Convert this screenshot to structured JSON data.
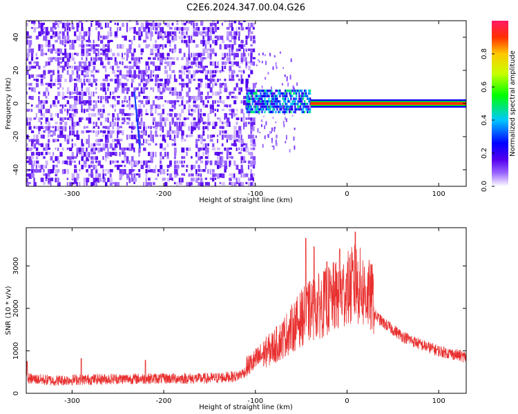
{
  "title": "C2E6.2024.347.00.04.G26",
  "chart_data": [
    {
      "type": "heatmap",
      "xlabel": "Height of straight line (km)",
      "ylabel": "Frequency (Hz)",
      "xlim": [
        -350,
        130
      ],
      "ylim": [
        -50,
        50
      ],
      "x_ticks": [
        -300,
        -200,
        -100,
        0,
        100
      ],
      "y_ticks": [
        -40,
        -20,
        0,
        20,
        40
      ],
      "colorbar": {
        "label": "Normalized spectral amplitude",
        "range": [
          0,
          1
        ],
        "ticks": [
          "0.0",
          "0.2",
          "0.4",
          "0.6",
          "0.8"
        ]
      },
      "regions": [
        {
          "x_range": [
            -350,
            -100
          ],
          "freq_range": [
            -50,
            50
          ],
          "amplitude": 0.05
        },
        {
          "x_range": [
            -110,
            -40
          ],
          "freq_range": [
            -6,
            8
          ],
          "amplitude": 0.4
        },
        {
          "x_range": [
            -40,
            130
          ],
          "freq_range": [
            -1,
            2
          ],
          "amplitude": 0.9
        }
      ],
      "streak": {
        "x": [
          -232,
          -226
        ],
        "freq": [
          7,
          -27
        ]
      }
    },
    {
      "type": "line",
      "xlabel": "Height of straight line (km)",
      "ylabel": "SNR (10 * v/v)",
      "xlim": [
        -350,
        130
      ],
      "ylim": [
        0,
        3900
      ],
      "x_ticks": [
        -300,
        -200,
        -100,
        0,
        100
      ],
      "y_ticks": [
        0,
        1000,
        2000,
        3000
      ],
      "color": "#e8302f",
      "series": [
        {
          "x": [
            -350,
            -320,
            -300,
            -250,
            -200,
            -150,
            -120,
            -100,
            -90,
            -75,
            -60,
            -50,
            -40,
            -30,
            -20,
            -10,
            0,
            10,
            20,
            30,
            40,
            60,
            80,
            100,
            130
          ],
          "y": [
            350,
            300,
            320,
            340,
            350,
            350,
            400,
            650,
            800,
            1000,
            1300,
            1500,
            1650,
            1750,
            1850,
            1950,
            2050,
            2200,
            2000,
            1850,
            1650,
            1350,
            1150,
            1000,
            850
          ],
          "peaks": [
            {
              "x": -349,
              "y": 750
            },
            {
              "x": -290,
              "y": 820
            },
            {
              "x": -220,
              "y": 780
            },
            {
              "x": -60,
              "y": 2000
            },
            {
              "x": -45,
              "y": 3650
            },
            {
              "x": -36,
              "y": 3450
            },
            {
              "x": -22,
              "y": 3100
            },
            {
              "x": -8,
              "y": 3400
            },
            {
              "x": 0,
              "y": 2800
            },
            {
              "x": 9,
              "y": 3800
            }
          ]
        }
      ]
    }
  ]
}
